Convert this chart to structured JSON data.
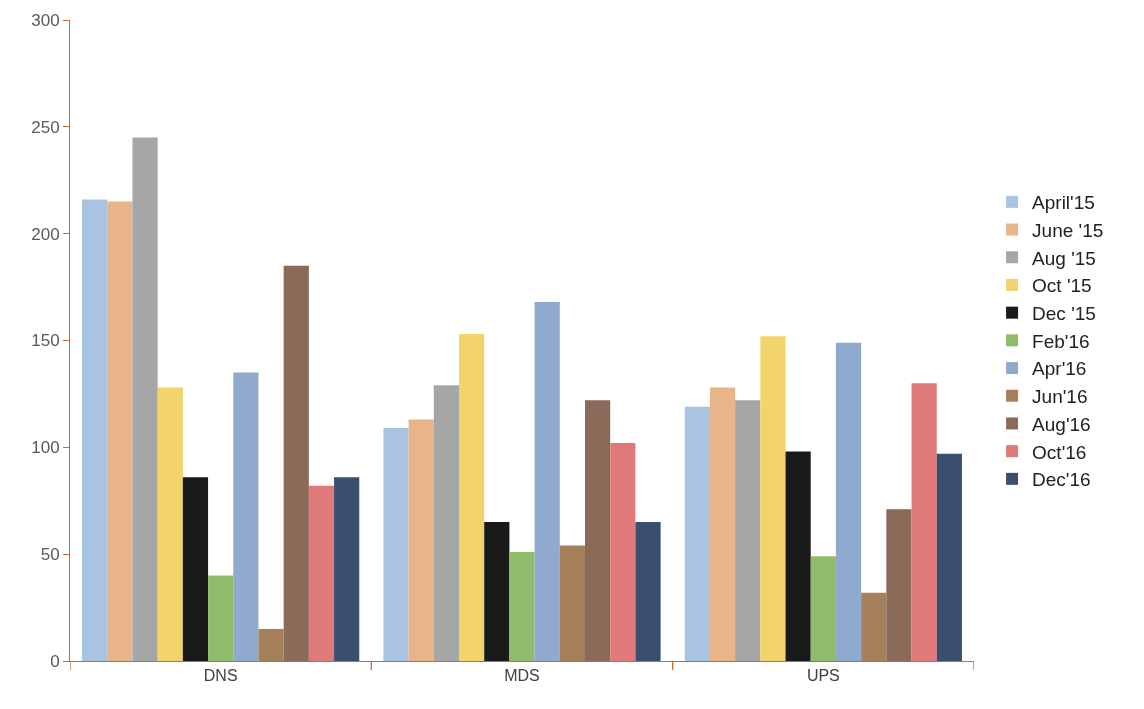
{
  "chart_data": {
    "type": "bar",
    "categories": [
      "DNS",
      "MDS",
      "UPS"
    ],
    "series": [
      {
        "name": "April'15",
        "color": "#a9c4e0",
        "values": [
          216,
          109,
          119
        ]
      },
      {
        "name": "June '15",
        "color": "#e8b48a",
        "values": [
          215,
          113,
          128
        ]
      },
      {
        "name": "Aug '15",
        "color": "#a6a6a6",
        "values": [
          245,
          129,
          122
        ]
      },
      {
        "name": "Oct '15",
        "color": "#f2d46b",
        "values": [
          128,
          153,
          152
        ]
      },
      {
        "name": "Dec '15",
        "color": "#1a1a1a",
        "values": [
          86,
          65,
          98
        ]
      },
      {
        "name": "Feb'16",
        "color": "#8fbc6a",
        "values": [
          40,
          51,
          49
        ]
      },
      {
        "name": "Apr'16",
        "color": "#8fa9cf",
        "values": [
          135,
          168,
          149
        ]
      },
      {
        "name": "Jun'16",
        "color": "#a5805a",
        "values": [
          15,
          54,
          32
        ]
      },
      {
        "name": "Aug'16",
        "color": "#8a6a58",
        "values": [
          185,
          122,
          71
        ]
      },
      {
        "name": "Oct'16",
        "color": "#e07a7a",
        "values": [
          82,
          102,
          130
        ]
      },
      {
        "name": "Dec'16",
        "color": "#3a4e6e",
        "values": [
          86,
          65,
          97
        ]
      }
    ],
    "ylim": [
      0,
      300
    ],
    "yticks": [
      0,
      50,
      100,
      150,
      200,
      250,
      300
    ],
    "grid": false,
    "legend": "right"
  }
}
